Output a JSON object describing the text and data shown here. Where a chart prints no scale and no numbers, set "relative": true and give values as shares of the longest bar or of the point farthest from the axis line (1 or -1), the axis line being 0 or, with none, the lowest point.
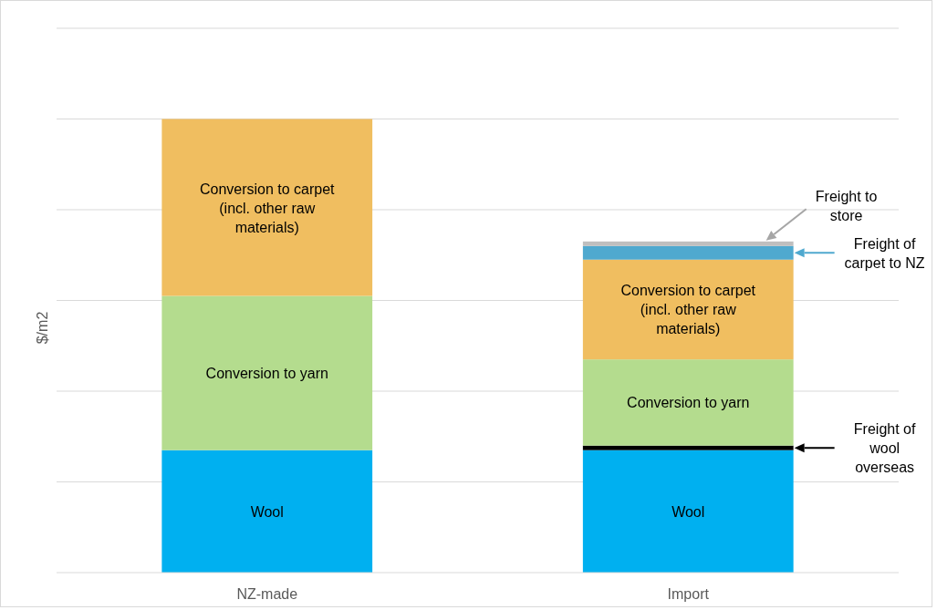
{
  "chart_data": {
    "type": "bar",
    "stacked": true,
    "relative": true,
    "ylabel": "$/m2",
    "grid": "y",
    "legend": "right",
    "categories": [
      "NZ-made",
      "Import"
    ],
    "series": [
      {
        "name": "Wool",
        "color": "#00b0f0",
        "values": [
          0.27,
          0.27
        ]
      },
      {
        "name": "Freight of wool overseas",
        "color": "#000000",
        "values": [
          0,
          0.01
        ]
      },
      {
        "name": "Conversion to yarn",
        "color": "#b4dc8e",
        "values": [
          0.34,
          0.19
        ]
      },
      {
        "name": "Conversion to carpet (incl. other raw materials)",
        "color": "#f0be60",
        "values": [
          0.39,
          0.22
        ]
      },
      {
        "name": "Freight of carpet to NZ",
        "color": "#4fa9cf",
        "values": [
          0,
          0.03
        ]
      },
      {
        "name": "Freight to store",
        "color": "#bfbfbf",
        "values": [
          0,
          0.01
        ]
      }
    ]
  }
}
